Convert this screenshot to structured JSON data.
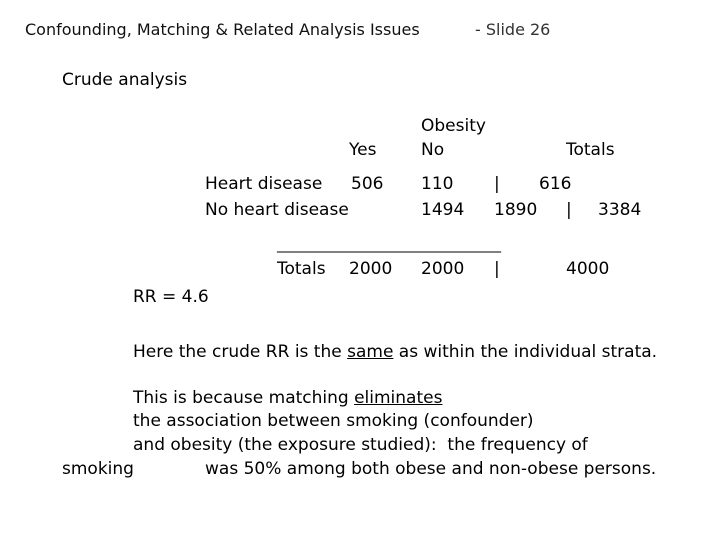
{
  "header": {
    "title": "Confounding, Matching & Related Analysis Issues",
    "slide": "- Slide 26"
  },
  "section_title": "Crude analysis",
  "table": {
    "exposure_label": "Obesity",
    "col_yes": "Yes",
    "col_no": "No",
    "col_totals": "Totals",
    "rows": [
      {
        "label": "Heart disease",
        "yes": "506",
        "no": "110",
        "sep": "|",
        "total": "616"
      },
      {
        "label": "No heart disease",
        "yes": "",
        "no": "1494",
        "extra": "1890",
        "sep": "|",
        "total": "3384"
      }
    ],
    "rule": "________________________________",
    "totals": {
      "label": "Totals",
      "yes": "2000",
      "no": "2000",
      "sep": "|",
      "total": "4000"
    }
  },
  "rr": "RR = 4.6",
  "para1": {
    "before": "Here the crude RR is the ",
    "emph": "same",
    "after": " as within the individual strata."
  },
  "para2": {
    "line1_before": "This is because matching ",
    "line1_emph": "eliminates",
    "line2": "the association between smoking (confounder)",
    "line3": "and obesity (the exposure studied):  the frequency of",
    "line4_a": "smoking",
    "line4_b": "was 50% among both obese and non-obese persons."
  }
}
